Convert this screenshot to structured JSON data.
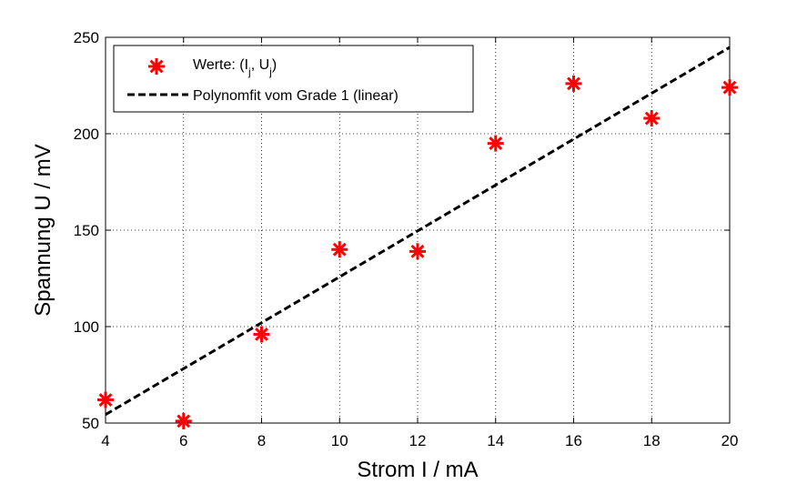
{
  "chart_data": {
    "type": "scatter",
    "xlabel": "Strom I / mA",
    "ylabel": "Spannung U / mV",
    "xlim": [
      4,
      20
    ],
    "ylim": [
      50,
      250
    ],
    "xticks": [
      4,
      6,
      8,
      10,
      12,
      14,
      16,
      18,
      20
    ],
    "yticks": [
      50,
      100,
      150,
      200,
      250
    ],
    "grid": true,
    "legend_position": "top-left",
    "series": [
      {
        "name": "Werte: (I_j, U_j)",
        "kind": "scatter",
        "marker": "asterisk",
        "color": "#ff0000",
        "x": [
          4,
          6,
          8,
          10,
          12,
          14,
          16,
          18,
          20
        ],
        "y": [
          62,
          51,
          96,
          140,
          139,
          195,
          226,
          208,
          224
        ]
      },
      {
        "name": "Polynomfit vom Grade 1 (linear)",
        "kind": "line",
        "style": "dashed",
        "color": "#000000",
        "x": [
          4,
          20
        ],
        "y": [
          54.4,
          244.8
        ]
      }
    ]
  },
  "legend": {
    "entries": [
      {
        "main": "Werte: (I",
        "sub1": "j",
        "mid": ", U",
        "sub2": "j",
        "end": ")"
      },
      {
        "main": "Polynomfit vom Grade 1 (linear)"
      }
    ]
  }
}
